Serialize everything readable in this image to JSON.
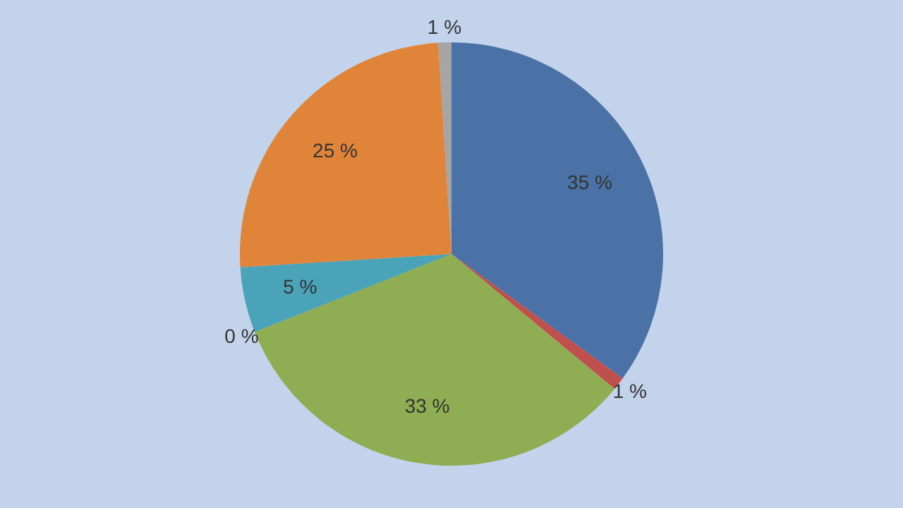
{
  "chart_data": {
    "type": "pie",
    "categories": [
      null,
      null,
      null,
      null,
      null,
      null,
      null
    ],
    "values": [
      35,
      1,
      33,
      0,
      5,
      25,
      1
    ],
    "colors": [
      "#4a72a6",
      "#c0504d",
      "#8fad52",
      "#8064a2",
      "#4aa3b8",
      "#e0843a",
      "#a5a5a5"
    ],
    "value_labels": [
      "35 %",
      "1 %",
      "33 %",
      "0 %",
      "5 %",
      "25 %",
      "1 %"
    ],
    "legend": false
  }
}
